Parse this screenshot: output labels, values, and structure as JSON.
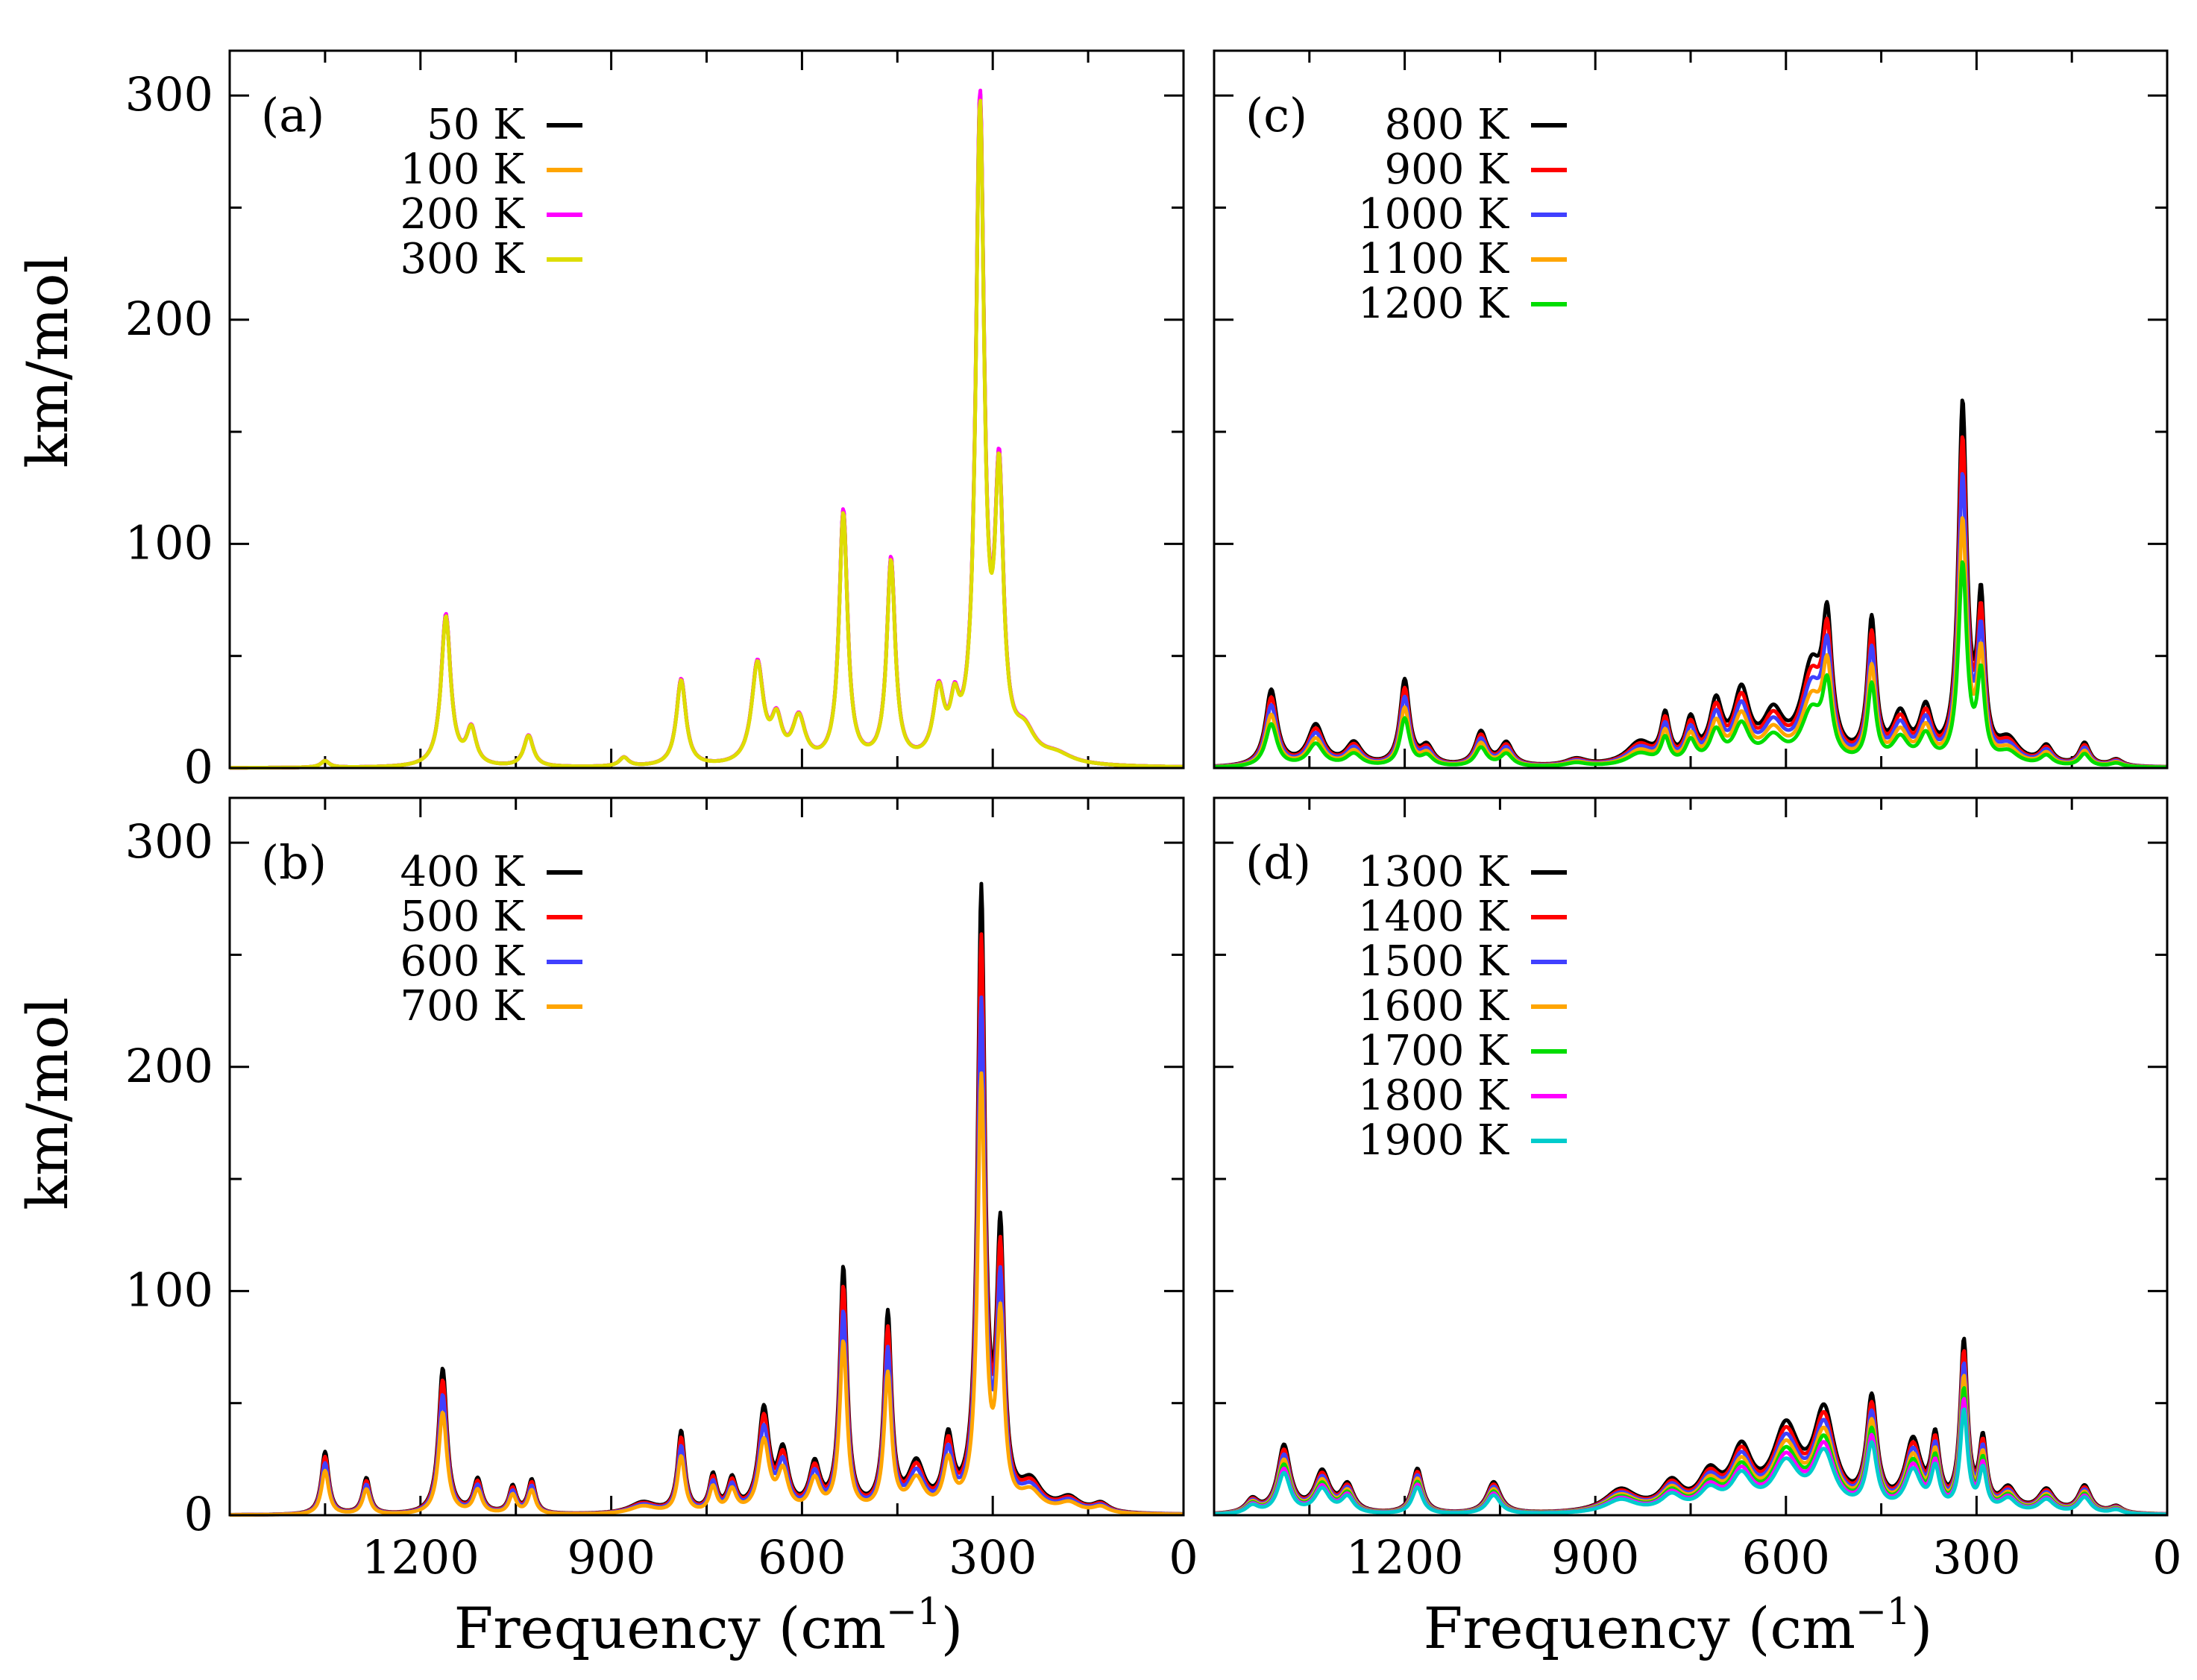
{
  "figure": {
    "ylabel": "km/mol",
    "xlabel_main": "Frequency (cm",
    "xlabel_sup": "−1",
    "xlabel_close": ")"
  },
  "chart_data": [
    {
      "type": "line",
      "panel": "(a)",
      "xlim": [
        1500,
        0
      ],
      "ylim": [
        0,
        320
      ],
      "xticks": [
        1200,
        900,
        600,
        300,
        0
      ],
      "yticks": [
        0,
        100,
        200,
        300
      ],
      "ytick_labels": [
        "0",
        "100",
        "200",
        "300"
      ],
      "xtick_labels": [],
      "xlabel": "",
      "ylabel": "km/mol",
      "legend_position": "top-center",
      "series": [
        {
          "name": "50 K",
          "color": "#000000",
          "scale": 0.995
        },
        {
          "name": "100 K",
          "color": "#ffa500",
          "scale": 0.99
        },
        {
          "name": "200 K",
          "color": "#ff00ff",
          "scale": 1.0
        },
        {
          "name": "300 K",
          "color": "#dddd00",
          "scale": 0.985
        }
      ],
      "peaks": [
        [
          1350,
          3,
          8
        ],
        [
          1160,
          68,
          9
        ],
        [
          1120,
          16,
          9
        ],
        [
          1030,
          14,
          9
        ],
        [
          880,
          4,
          9
        ],
        [
          790,
          39,
          9
        ],
        [
          670,
          45,
          11
        ],
        [
          640,
          18,
          10
        ],
        [
          605,
          20,
          12
        ],
        [
          535,
          113,
          8
        ],
        [
          460,
          91,
          8
        ],
        [
          385,
          30,
          10
        ],
        [
          360,
          20,
          8
        ],
        [
          320,
          292,
          8
        ],
        [
          290,
          120,
          8
        ],
        [
          250,
          12,
          20
        ],
        [
          200,
          4,
          30
        ]
      ]
    },
    {
      "type": "line",
      "panel": "(b)",
      "xlim": [
        1500,
        0
      ],
      "ylim": [
        0,
        320
      ],
      "xticks": [
        1200,
        900,
        600,
        300,
        0
      ],
      "yticks": [
        0,
        100,
        200,
        300
      ],
      "ytick_labels": [
        "0",
        "100",
        "200",
        "300"
      ],
      "xtick_labels": [
        "1200",
        "900",
        "600",
        "300",
        "0"
      ],
      "xlabel": "Frequency (cm−1)",
      "ylabel": "km/mol",
      "legend_position": "top-center",
      "series": [
        {
          "name": "400 K",
          "color": "#000000",
          "scale": 1.0
        },
        {
          "name": "500 K",
          "color": "#ff0000",
          "scale": 0.92
        },
        {
          "name": "600 K",
          "color": "#4040ff",
          "scale": 0.82
        },
        {
          "name": "700 K",
          "color": "#ffa500",
          "scale": 0.7
        }
      ],
      "peaks": [
        [
          1350,
          28,
          7
        ],
        [
          1285,
          16,
          7
        ],
        [
          1165,
          65,
          8
        ],
        [
          1110,
          15,
          8
        ],
        [
          1055,
          12,
          7
        ],
        [
          1025,
          15,
          7
        ],
        [
          850,
          5,
          25
        ],
        [
          790,
          36,
          7
        ],
        [
          740,
          16,
          7
        ],
        [
          710,
          14,
          8
        ],
        [
          660,
          45,
          10
        ],
        [
          630,
          25,
          10
        ],
        [
          580,
          20,
          10
        ],
        [
          535,
          108,
          7
        ],
        [
          465,
          87,
          7
        ],
        [
          420,
          20,
          15
        ],
        [
          370,
          30,
          9
        ],
        [
          318,
          273,
          7
        ],
        [
          288,
          118,
          7
        ],
        [
          240,
          12,
          20
        ],
        [
          180,
          6,
          20
        ],
        [
          130,
          4,
          15
        ]
      ]
    },
    {
      "type": "line",
      "panel": "(c)",
      "xlim": [
        1500,
        0
      ],
      "ylim": [
        0,
        320
      ],
      "xticks": [
        1200,
        900,
        600,
        300,
        0
      ],
      "yticks": [
        0,
        100,
        200,
        300
      ],
      "ytick_labels": [],
      "xtick_labels": [],
      "xlabel": "",
      "ylabel": "",
      "legend_position": "top-center",
      "series": [
        {
          "name": "800 K",
          "color": "#000000",
          "scale": 1.0
        },
        {
          "name": "900 K",
          "color": "#ff0000",
          "scale": 0.9
        },
        {
          "name": "1000 K",
          "color": "#4040ff",
          "scale": 0.8
        },
        {
          "name": "1100 K",
          "color": "#ffa500",
          "scale": 0.68
        },
        {
          "name": "1200 K",
          "color": "#00dd00",
          "scale": 0.56
        }
      ],
      "peaks": [
        [
          1410,
          34,
          11
        ],
        [
          1340,
          18,
          15
        ],
        [
          1280,
          10,
          15
        ],
        [
          1200,
          38,
          9
        ],
        [
          1165,
          8,
          12
        ],
        [
          1080,
          15,
          11
        ],
        [
          1040,
          10,
          12
        ],
        [
          930,
          3,
          20
        ],
        [
          830,
          10,
          25
        ],
        [
          790,
          20,
          8
        ],
        [
          750,
          18,
          10
        ],
        [
          710,
          25,
          12
        ],
        [
          670,
          30,
          15
        ],
        [
          620,
          20,
          20
        ],
        [
          560,
          40,
          20
        ],
        [
          535,
          55,
          9
        ],
        [
          465,
          62,
          8
        ],
        [
          420,
          20,
          15
        ],
        [
          380,
          22,
          12
        ],
        [
          322,
          158,
          8
        ],
        [
          293,
          68,
          7
        ],
        [
          250,
          10,
          20
        ],
        [
          190,
          8,
          12
        ],
        [
          130,
          10,
          10
        ],
        [
          80,
          3,
          12
        ]
      ]
    },
    {
      "type": "line",
      "panel": "(d)",
      "xlim": [
        1500,
        0
      ],
      "ylim": [
        0,
        320
      ],
      "xticks": [
        1200,
        900,
        600,
        300,
        0
      ],
      "yticks": [
        0,
        100,
        200,
        300
      ],
      "ytick_labels": [],
      "xtick_labels": [
        "1200",
        "900",
        "600",
        "300",
        "0"
      ],
      "xlabel": "Frequency (cm−1)",
      "ylabel": "",
      "legend_position": "top-center",
      "series": [
        {
          "name": "1300 K",
          "color": "#000000",
          "scale": 1.0
        },
        {
          "name": "1400 K",
          "color": "#ff0000",
          "scale": 0.93
        },
        {
          "name": "1500 K",
          "color": "#4040ff",
          "scale": 0.86
        },
        {
          "name": "1600 K",
          "color": "#ffa500",
          "scale": 0.79
        },
        {
          "name": "1700 K",
          "color": "#00dd00",
          "scale": 0.72
        },
        {
          "name": "1800 K",
          "color": "#ff00ff",
          "scale": 0.66
        },
        {
          "name": "1900 K",
          "color": "#00cccc",
          "scale": 0.6
        }
      ],
      "peaks": [
        [
          1440,
          6,
          12
        ],
        [
          1390,
          30,
          12
        ],
        [
          1330,
          18,
          14
        ],
        [
          1290,
          12,
          12
        ],
        [
          1180,
          20,
          10
        ],
        [
          1060,
          14,
          13
        ],
        [
          860,
          10,
          30
        ],
        [
          780,
          12,
          20
        ],
        [
          720,
          15,
          20
        ],
        [
          670,
          25,
          20
        ],
        [
          600,
          35,
          25
        ],
        [
          540,
          42,
          20
        ],
        [
          465,
          48,
          10
        ],
        [
          400,
          30,
          15
        ],
        [
          365,
          30,
          8
        ],
        [
          320,
          74,
          7
        ],
        [
          290,
          30,
          7
        ],
        [
          250,
          10,
          15
        ],
        [
          190,
          10,
          15
        ],
        [
          130,
          12,
          12
        ],
        [
          80,
          3,
          12
        ]
      ]
    }
  ]
}
